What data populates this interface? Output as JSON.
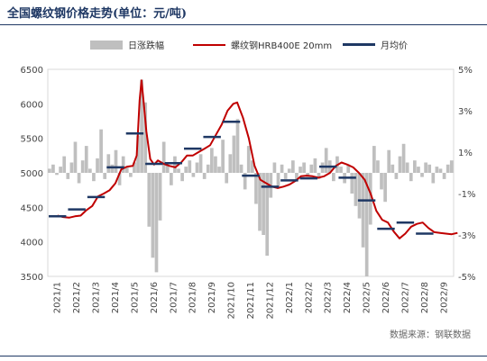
{
  "title": "全国螺纹钢价格走势(单位：元/吨)",
  "source": "数据来源：钢联数据",
  "legend": {
    "bar": "日涨跌幅",
    "line": "螺纹钢HRB400E 20mm",
    "avg": "月均价"
  },
  "colors": {
    "bar": "#bfbfbf",
    "line": "#c00000",
    "avg": "#1f3864",
    "title": "#1f3864"
  },
  "chart_data": {
    "type": "line",
    "x_labels": [
      "2021/1",
      "2021/2",
      "2021/3",
      "2021/4",
      "2021/5",
      "2021/6",
      "2021/7",
      "2021/8",
      "2021/9",
      "2021/10",
      "2021/11",
      "2021/12",
      "2022/1",
      "2022/2",
      "2022/3",
      "2022/4",
      "2022/5",
      "2022/6",
      "2022/7",
      "2022/8",
      "2022/9"
    ],
    "y_left": {
      "min": 3500,
      "max": 6500,
      "step": 500,
      "ticks": [
        "3500",
        "4000",
        "4500",
        "5000",
        "5500",
        "6000",
        "6500"
      ]
    },
    "y_right": {
      "min": -5,
      "max": 5,
      "ticks": [
        "-5%",
        "-3%",
        "-1%",
        "1%",
        "3%",
        "5%"
      ],
      "tick_values": [
        -5,
        -3,
        -1,
        1,
        3,
        5
      ]
    },
    "series": [
      {
        "name": "螺纹钢HRB400E 20mm",
        "axis": "left",
        "type": "line",
        "points": [
          [
            0,
            4380
          ],
          [
            0.3,
            4360
          ],
          [
            0.6,
            4350
          ],
          [
            0.9,
            4370
          ],
          [
            1.2,
            4380
          ],
          [
            1.5,
            4460
          ],
          [
            1.8,
            4520
          ],
          [
            2.1,
            4660
          ],
          [
            2.4,
            4700
          ],
          [
            2.7,
            4750
          ],
          [
            3.0,
            4850
          ],
          [
            3.3,
            5050
          ],
          [
            3.6,
            5090
          ],
          [
            3.9,
            5100
          ],
          [
            4.1,
            5250
          ],
          [
            4.25,
            6050
          ],
          [
            4.35,
            6340
          ],
          [
            4.45,
            6050
          ],
          [
            4.6,
            5600
          ],
          [
            4.8,
            5200
          ],
          [
            5.0,
            5120
          ],
          [
            5.2,
            5180
          ],
          [
            5.5,
            5130
          ],
          [
            5.8,
            5100
          ],
          [
            6.1,
            5080
          ],
          [
            6.4,
            5150
          ],
          [
            6.7,
            5250
          ],
          [
            7.0,
            5250
          ],
          [
            7.3,
            5300
          ],
          [
            7.6,
            5350
          ],
          [
            7.9,
            5400
          ],
          [
            8.2,
            5550
          ],
          [
            8.5,
            5700
          ],
          [
            8.8,
            5900
          ],
          [
            9.1,
            6000
          ],
          [
            9.3,
            6020
          ],
          [
            9.6,
            5800
          ],
          [
            9.9,
            5500
          ],
          [
            10.2,
            5100
          ],
          [
            10.5,
            4900
          ],
          [
            10.8,
            4850
          ],
          [
            11.1,
            4800
          ],
          [
            11.4,
            4780
          ],
          [
            11.7,
            4800
          ],
          [
            12.0,
            4830
          ],
          [
            12.3,
            4880
          ],
          [
            12.6,
            4950
          ],
          [
            12.9,
            4960
          ],
          [
            13.2,
            4950
          ],
          [
            13.5,
            4930
          ],
          [
            13.8,
            4950
          ],
          [
            14.1,
            5000
          ],
          [
            14.4,
            5100
          ],
          [
            14.7,
            5150
          ],
          [
            15.0,
            5120
          ],
          [
            15.3,
            5080
          ],
          [
            15.6,
            5000
          ],
          [
            15.9,
            4900
          ],
          [
            16.2,
            4700
          ],
          [
            16.5,
            4450
          ],
          [
            16.8,
            4320
          ],
          [
            17.1,
            4280
          ],
          [
            17.4,
            4150
          ],
          [
            17.7,
            4050
          ],
          [
            18.0,
            4120
          ],
          [
            18.3,
            4220
          ],
          [
            18.6,
            4260
          ],
          [
            18.9,
            4280
          ],
          [
            19.2,
            4200
          ],
          [
            19.5,
            4140
          ],
          [
            19.8,
            4130
          ],
          [
            20.1,
            4120
          ],
          [
            20.4,
            4110
          ],
          [
            20.7,
            4130
          ]
        ]
      },
      {
        "name": "月均价",
        "axis": "left",
        "type": "step",
        "segments": [
          [
            0,
            1,
            4370
          ],
          [
            1,
            2,
            4470
          ],
          [
            2,
            3,
            4650
          ],
          [
            3,
            4,
            5080
          ],
          [
            4,
            5,
            5570
          ],
          [
            5,
            6,
            5130
          ],
          [
            6,
            7,
            5140
          ],
          [
            7,
            8,
            5350
          ],
          [
            8,
            9,
            5520
          ],
          [
            9,
            10,
            5740
          ],
          [
            10,
            11,
            4960
          ],
          [
            11,
            12,
            4800
          ],
          [
            12,
            13,
            4890
          ],
          [
            13,
            14,
            4920
          ],
          [
            14,
            15,
            5090
          ],
          [
            15,
            16,
            4930
          ],
          [
            16,
            17,
            4600
          ],
          [
            17,
            18,
            4190
          ],
          [
            18,
            19,
            4280
          ],
          [
            19,
            20,
            4120
          ]
        ]
      },
      {
        "name": "日涨跌幅",
        "axis": "right",
        "type": "bar",
        "values": [
          0.2,
          0.4,
          -0.1,
          0.3,
          0.8,
          -0.3,
          0.5,
          1.5,
          -0.5,
          0.6,
          1.3,
          0.2,
          -0.4,
          0.7,
          2.1,
          -0.3,
          0.9,
          0.4,
          1.1,
          -0.6,
          0.8,
          0.3,
          -0.2,
          0.5,
          1.8,
          4.5,
          3.4,
          -2.6,
          -4.1,
          -4.8,
          -2.3,
          1.5,
          0.4,
          -0.6,
          0.8,
          0.2,
          -0.4,
          0.3,
          0.6,
          -0.2,
          0.5,
          0.9,
          -0.3,
          0.4,
          1.2,
          0.8,
          0.3,
          1.6,
          -0.5,
          0.9,
          1.8,
          2.6,
          0.4,
          -0.8,
          1.3,
          0.6,
          -1.5,
          -2.8,
          -3.0,
          -4.0,
          -1.2,
          0.5,
          -0.7,
          0.4,
          -0.3,
          0.2,
          0.6,
          -0.4,
          0.3,
          0.5,
          -0.2,
          0.4,
          0.7,
          -0.3,
          0.5,
          1.2,
          0.6,
          -0.4,
          0.8,
          0.3,
          -0.5,
          0.4,
          -1.0,
          -1.6,
          -2.2,
          -3.6,
          -5.0,
          -2.5,
          1.3,
          0.6,
          -0.8,
          -1.4,
          1.1,
          0.4,
          -0.3,
          0.8,
          1.4,
          0.5,
          -0.4,
          0.6,
          0.3,
          -0.2,
          0.5,
          0.4,
          -0.5,
          0.3,
          0.2,
          -0.3,
          0.4,
          0.6
        ]
      }
    ]
  }
}
